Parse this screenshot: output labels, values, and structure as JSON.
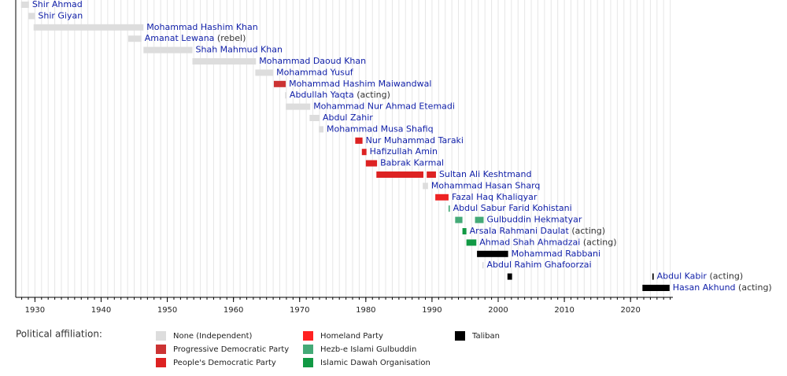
{
  "chart_data": {
    "type": "timeline",
    "xlim": [
      1927.1,
      2026.4
    ],
    "xticks": [
      1930,
      1940,
      1950,
      1960,
      1970,
      1980,
      1990,
      2000,
      2010,
      2020
    ],
    "minor_xticks": [
      1928,
      1929,
      1930,
      1931,
      1932,
      1933,
      1934,
      1935,
      1936,
      1937,
      1938,
      1939,
      1940,
      1941,
      1942,
      1943,
      1944,
      1945,
      1946,
      1947,
      1948,
      1949,
      1950,
      1951,
      1952,
      1953,
      1954,
      1955,
      1956,
      1957,
      1958,
      1959,
      1960,
      1961,
      1962,
      1963,
      1964,
      1965,
      1966,
      1967,
      1968,
      1969,
      1970,
      1971,
      1972,
      1973,
      1974,
      1975,
      1976,
      1977,
      1978,
      1979,
      1980,
      1981,
      1982,
      1983,
      1984,
      1985,
      1986,
      1987,
      1988,
      1989,
      1990,
      1991,
      1992,
      1993,
      1994,
      1995,
      1996,
      1997,
      1998,
      1999,
      2000,
      2001,
      2002,
      2003,
      2004,
      2005,
      2006,
      2007,
      2008,
      2009,
      2010,
      2011,
      2012,
      2013,
      2014,
      2015,
      2016,
      2017,
      2018,
      2019,
      2020,
      2021,
      2022,
      2023,
      2024,
      2025,
      2026
    ],
    "grid": true,
    "rows": [
      {
        "name": "Shir Ahmad",
        "bars": [
          {
            "start": 1927.9,
            "end": 1929.1,
            "color": "#dddddd"
          }
        ]
      },
      {
        "name": "Shir Giyan",
        "bars": [
          {
            "start": 1929.0,
            "end": 1930.0,
            "color": "#dddddd"
          }
        ]
      },
      {
        "name": "Mohammad Hashim Khan",
        "bars": [
          {
            "start": 1929.8,
            "end": 1946.4,
            "color": "#dddddd"
          }
        ]
      },
      {
        "name": "Amanat Lewana",
        "note": "(rebel)",
        "bars": [
          {
            "start": 1944.1,
            "end": 1946.1,
            "color": "#dddddd"
          }
        ]
      },
      {
        "name": "Shah Mahmud Khan",
        "bars": [
          {
            "start": 1946.4,
            "end": 1953.8,
            "color": "#dddddd"
          }
        ]
      },
      {
        "name": "Mohammad Daoud Khan",
        "bars": [
          {
            "start": 1953.8,
            "end": 1963.4,
            "color": "#dddddd"
          }
        ]
      },
      {
        "name": "Mohammad Yusuf",
        "bars": [
          {
            "start": 1963.3,
            "end": 1966.0,
            "color": "#dddddd"
          }
        ]
      },
      {
        "name": "Mohammad Hashim Maiwandwal",
        "bars": [
          {
            "start": 1966.1,
            "end": 1967.9,
            "color": "#cc3333"
          }
        ]
      },
      {
        "name": "Abdullah Yaqta",
        "note": "(acting)",
        "bars": [
          {
            "start": 1967.8,
            "end": 1968.0,
            "color": "#dddddd"
          }
        ]
      },
      {
        "name": "Mohammad Nur Ahmad Etemadi",
        "bars": [
          {
            "start": 1967.9,
            "end": 1971.6,
            "color": "#dddddd"
          }
        ]
      },
      {
        "name": "Abdul Zahir",
        "bars": [
          {
            "start": 1971.5,
            "end": 1973.0,
            "color": "#dddddd"
          }
        ]
      },
      {
        "name": "Mohammad Musa Shafiq",
        "bars": [
          {
            "start": 1972.9,
            "end": 1973.6,
            "color": "#dddddd"
          }
        ]
      },
      {
        "name": "Nur Muhammad Taraki",
        "bars": [
          {
            "start": 1978.4,
            "end": 1979.5,
            "color": "#dd2222"
          }
        ]
      },
      {
        "name": "Hafizullah Amin",
        "bars": [
          {
            "start": 1979.4,
            "end": 1980.1,
            "color": "#dd2222"
          }
        ]
      },
      {
        "name": "Babrak Karmal",
        "bars": [
          {
            "start": 1980.0,
            "end": 1981.7,
            "color": "#dd2222"
          }
        ]
      },
      {
        "name": "Sultan Ali Keshtmand",
        "bars": [
          {
            "start": 1981.6,
            "end": 1988.7,
            "color": "#dd2222"
          },
          {
            "start": 1989.2,
            "end": 1990.6,
            "color": "#dd2222"
          }
        ]
      },
      {
        "name": "Mohammad Hasan Sharq",
        "bars": [
          {
            "start": 1988.6,
            "end": 1989.4,
            "color": "#dddddd"
          }
        ]
      },
      {
        "name": "Fazal Haq Khaliqyar",
        "bars": [
          {
            "start": 1990.5,
            "end": 1992.5,
            "color": "#ee2222"
          }
        ]
      },
      {
        "name": "Abdul Sabur Farid Kohistani",
        "bars": [
          {
            "start": 1992.5,
            "end": 1992.7,
            "color": "#44aa77"
          }
        ]
      },
      {
        "name": "Gulbuddin Hekmatyar",
        "bars": [
          {
            "start": 1993.5,
            "end": 1994.6,
            "color": "#44aa77"
          },
          {
            "start": 1996.5,
            "end": 1997.8,
            "color": "#44aa77"
          }
        ]
      },
      {
        "name": "Arsala Rahmani Daulat",
        "note": "(acting)",
        "bars": [
          {
            "start": 1994.6,
            "end": 1995.2,
            "color": "#119944"
          }
        ]
      },
      {
        "name": "Ahmad Shah Ahmadzai",
        "note": "(acting)",
        "bars": [
          {
            "start": 1995.2,
            "end": 1996.7,
            "color": "#119944"
          }
        ]
      },
      {
        "name": "Mohammad Rabbani",
        "bars": [
          {
            "start": 1996.8,
            "end": 2001.5,
            "color": "#000000"
          }
        ]
      },
      {
        "name": "Abdul Rahim Ghafoorzai",
        "bars": [
          {
            "start": 1997.6,
            "end": 1997.8,
            "color": "#dddddd"
          }
        ]
      },
      {
        "name": "Abdul Kabir",
        "note": "(acting)",
        "bars": [
          {
            "start": 2001.4,
            "end": 2002.1,
            "color": "#000000"
          },
          {
            "start": 2023.3,
            "end": 2023.5,
            "color": "#000000"
          }
        ]
      },
      {
        "name": "Hasan Akhund",
        "note": "(acting)",
        "bars": [
          {
            "start": 2021.8,
            "end": 2025.9,
            "color": "#000000"
          }
        ]
      }
    ],
    "legend_title": "Political affiliation:",
    "legend": [
      {
        "name": "None (Independent)",
        "color": "#dddddd"
      },
      {
        "name": "Progressive Democratic Party",
        "color": "#cc3333"
      },
      {
        "name": "People's Democratic Party",
        "color": "#dd2222"
      },
      {
        "name": "Homeland Party",
        "color": "#ff2222"
      },
      {
        "name": "Hezb-e Islami Gulbuddin",
        "color": "#44aa77"
      },
      {
        "name": "Islamic Dawah Organisation",
        "color": "#119944"
      },
      {
        "name": "Taliban",
        "color": "#000000"
      }
    ]
  }
}
